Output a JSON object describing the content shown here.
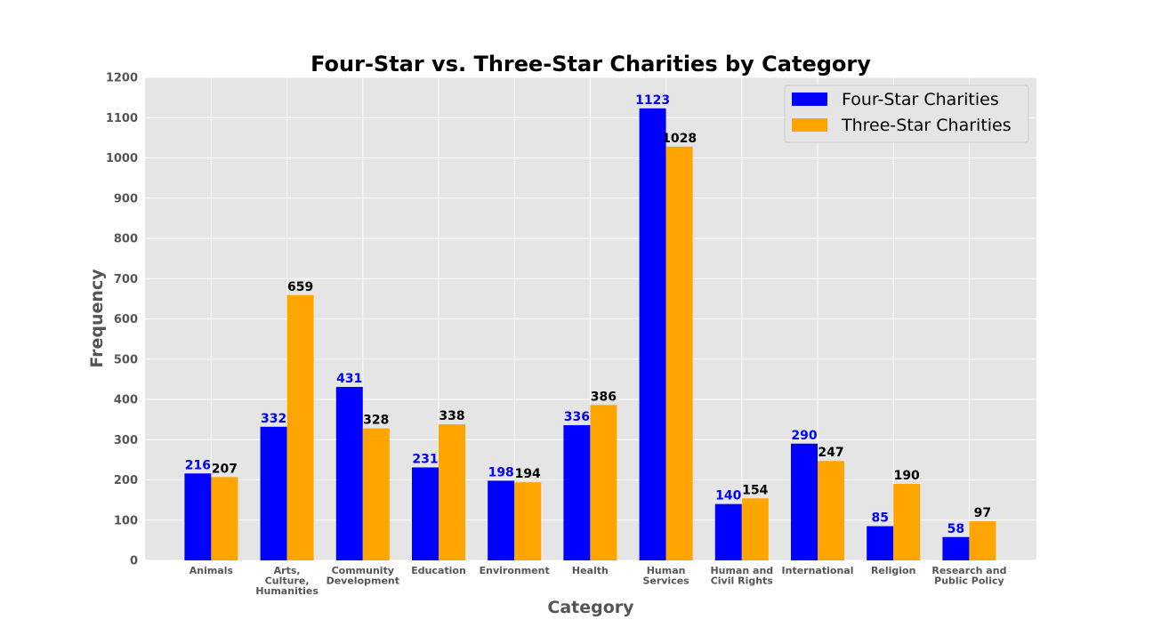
{
  "chart_data": {
    "type": "bar",
    "title": "Four-Star vs. Three-Star Charities by Category",
    "xlabel": "Category",
    "ylabel": "Frequency",
    "ylim": [
      0,
      1200
    ],
    "yticks": [
      0,
      100,
      200,
      300,
      400,
      500,
      600,
      700,
      800,
      900,
      1000,
      1100,
      1200
    ],
    "grid": true,
    "legend_position": "top-right",
    "categories": [
      [
        "Animals"
      ],
      [
        "Arts,",
        "Culture,",
        "Humanities"
      ],
      [
        "Community",
        "Development"
      ],
      [
        "Education"
      ],
      [
        "Environment"
      ],
      [
        "Health"
      ],
      [
        "Human",
        "Services"
      ],
      [
        "Human and",
        "Civil Rights"
      ],
      [
        "International"
      ],
      [
        "Religion"
      ],
      [
        "Research and",
        "Public Policy"
      ]
    ],
    "series": [
      {
        "name": "Four-Star Charities",
        "color": "#0000ff",
        "label_color": "#0000ff",
        "values": [
          216,
          332,
          431,
          231,
          198,
          336,
          1123,
          140,
          290,
          85,
          58
        ]
      },
      {
        "name": "Three-Star Charities",
        "color": "#ffa500",
        "label_color": "#000000",
        "values": [
          207,
          659,
          328,
          338,
          194,
          386,
          1028,
          154,
          247,
          190,
          97
        ]
      }
    ],
    "colors": {
      "plot_background": "#e5e5e5",
      "grid": "#ffffff",
      "axis_text": "#555555",
      "title": "#000000"
    }
  }
}
